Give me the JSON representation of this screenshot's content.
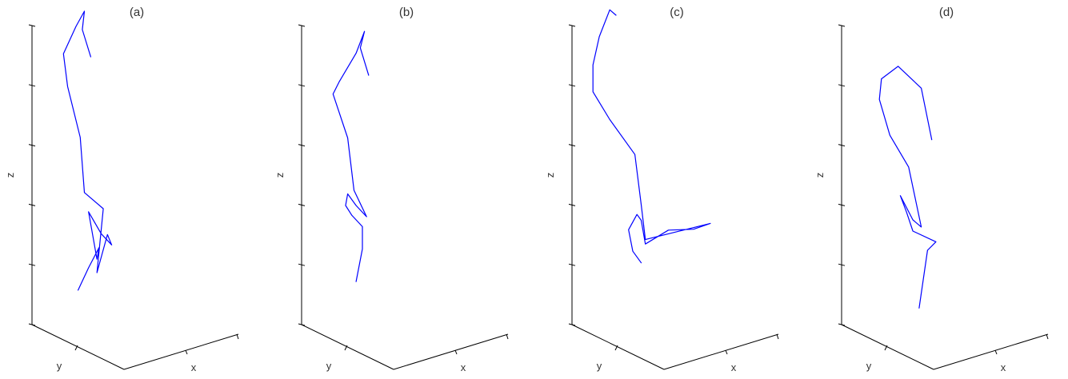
{
  "chart_data": [
    {
      "type": "line",
      "title": "(a)",
      "xlabel": "x",
      "ylabel": "y",
      "zlabel": "z",
      "series": [
        {
          "values": [
            [
              22,
              0.11
            ],
            [
              27,
              0.2
            ],
            [
              32,
              0.28
            ],
            [
              31,
              0.23
            ],
            [
              27,
              0.45
            ],
            [
              33,
              0.34
            ],
            [
              38,
              0.28
            ],
            [
              36,
              0.33
            ],
            [
              31,
              0.17
            ],
            [
              34,
              0.45
            ],
            [
              25,
              0.54
            ],
            [
              23,
              0.79
            ],
            [
              17,
              1.03
            ],
            [
              15,
              1.18
            ],
            [
              21,
              1.29
            ],
            [
              25,
              1.35
            ],
            [
              24,
              1.27
            ],
            [
              28,
              1.14
            ]
          ]
        }
      ]
    },
    {
      "type": "line",
      "title": "(b)",
      "xlabel": "x",
      "ylabel": "y",
      "zlabel": "z",
      "series": [
        {
          "values": [
            [
              26,
              0.14
            ],
            [
              29,
              0.28
            ],
            [
              29,
              0.38
            ],
            [
              24,
              0.44
            ],
            [
              21,
              0.49
            ],
            [
              22,
              0.54
            ],
            [
              26,
              0.48
            ],
            [
              31,
              0.42
            ],
            [
              25,
              0.55
            ],
            [
              22,
              0.79
            ],
            [
              15,
              1.0
            ],
            [
              18,
              1.05
            ],
            [
              26,
              1.16
            ],
            [
              30,
              1.25
            ],
            [
              28,
              1.18
            ],
            [
              32,
              1.05
            ]
          ]
        }
      ]
    },
    {
      "type": "line",
      "title": "(c)",
      "xlabel": "x",
      "ylabel": "y",
      "zlabel": "z",
      "series": [
        {
          "values": [
            [
              33,
              0.21
            ],
            [
              29,
              0.27
            ],
            [
              27,
              0.37
            ],
            [
              31,
              0.43
            ],
            [
              33,
              0.4
            ],
            [
              35,
              0.29
            ],
            [
              46,
              0.33
            ],
            [
              58,
              0.31
            ],
            [
              66,
              0.32
            ],
            [
              35,
              0.31
            ],
            [
              33,
              0.47
            ],
            [
              30,
              0.7
            ],
            [
              18,
              0.88
            ],
            [
              10,
              1.02
            ],
            [
              10,
              1.14
            ],
            [
              13,
              1.26
            ],
            [
              18,
              1.37
            ],
            [
              21,
              1.34
            ]
          ]
        }
      ]
    },
    {
      "type": "line",
      "title": "(d)",
      "xlabel": "x",
      "ylabel": "y",
      "zlabel": "z",
      "series": [
        {
          "values": [
            [
              37,
              0.0
            ],
            [
              41,
              0.25
            ],
            [
              45,
              0.28
            ],
            [
              34,
              0.35
            ],
            [
              31,
              0.44
            ],
            [
              28,
              0.52
            ],
            [
              34,
              0.4
            ],
            [
              38,
              0.36
            ],
            [
              32,
              0.64
            ],
            [
              23,
              0.8
            ],
            [
              18,
              0.97
            ],
            [
              19,
              1.06
            ],
            [
              27,
              1.1
            ],
            [
              38,
              0.98
            ],
            [
              43,
              0.74
            ]
          ]
        }
      ]
    }
  ]
}
